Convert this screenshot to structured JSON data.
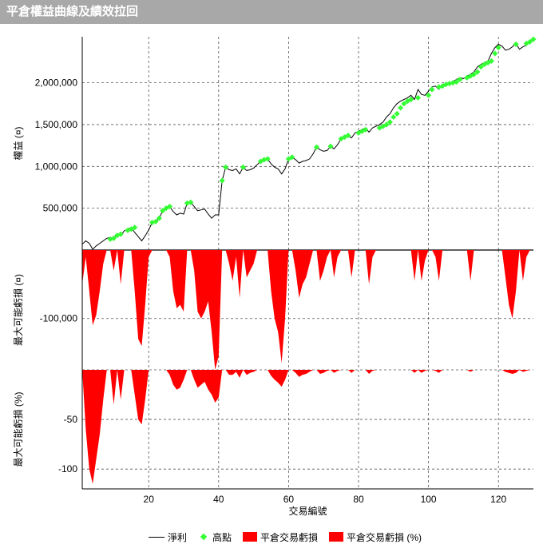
{
  "window": {
    "title": "平倉權益曲線及績效拉回"
  },
  "colors": {
    "line": "#000000",
    "marker": "#33ff33",
    "fill": "#ff0000",
    "grid": "#555555"
  },
  "chart_data": {
    "type": "line",
    "xlabel": "交易編號",
    "xlim": [
      1,
      130
    ],
    "xticks": [
      20,
      40,
      60,
      80,
      100,
      120
    ],
    "legend_position": "bottom",
    "legend": [
      "淨利",
      "高點",
      "平倉交易虧損",
      "平倉交易虧損 (%)"
    ],
    "panels": [
      {
        "name": "equity",
        "ylabel": "權益 (¤)",
        "ylim": [
          0,
          2550000
        ],
        "yticks": [
          500000,
          1000000,
          1500000,
          2000000
        ],
        "ytick_labels": [
          "500,000",
          "1,000,000",
          "1,500,000",
          "2,000,000"
        ],
        "series": [
          {
            "name": "淨利",
            "x": [
              1,
              2,
              3,
              4,
              5,
              6,
              7,
              8,
              9,
              10,
              11,
              12,
              13,
              14,
              15,
              16,
              17,
              18,
              19,
              20,
              21,
              22,
              23,
              24,
              25,
              26,
              27,
              28,
              29,
              30,
              31,
              32,
              33,
              34,
              35,
              36,
              37,
              38,
              39,
              40,
              41,
              42,
              43,
              44,
              45,
              46,
              47,
              48,
              49,
              50,
              51,
              52,
              53,
              54,
              55,
              56,
              57,
              58,
              59,
              60,
              61,
              62,
              63,
              64,
              65,
              66,
              67,
              68,
              69,
              70,
              71,
              72,
              73,
              74,
              75,
              76,
              77,
              78,
              79,
              80,
              81,
              82,
              83,
              84,
              85,
              86,
              87,
              88,
              89,
              90,
              91,
              92,
              93,
              94,
              95,
              96,
              97,
              98,
              99,
              100,
              101,
              102,
              103,
              104,
              105,
              106,
              107,
              108,
              109,
              110,
              111,
              112,
              113,
              114,
              115,
              116,
              117,
              118,
              119,
              120,
              121,
              122,
              123,
              124,
              125,
              126,
              127,
              128,
              129,
              130
            ],
            "y": [
              70000,
              110000,
              80000,
              10000,
              50000,
              80000,
              110000,
              140000,
              150000,
              140000,
              190000,
              170000,
              230000,
              250000,
              270000,
              210000,
              160000,
              110000,
              170000,
              240000,
              330000,
              340000,
              380000,
              470000,
              500000,
              520000,
              460000,
              420000,
              440000,
              430000,
              560000,
              570000,
              520000,
              470000,
              480000,
              490000,
              430000,
              380000,
              420000,
              420000,
              830000,
              990000,
              960000,
              950000,
              970000,
              910000,
              990000,
              950000,
              960000,
              980000,
              1020000,
              1060000,
              1080000,
              1090000,
              1030000,
              990000,
              970000,
              910000,
              970000,
              1090000,
              1110000,
              1080000,
              1040000,
              1060000,
              1070000,
              1090000,
              1150000,
              1230000,
              1200000,
              1180000,
              1190000,
              1240000,
              1210000,
              1260000,
              1330000,
              1350000,
              1370000,
              1340000,
              1400000,
              1420000,
              1440000,
              1460000,
              1410000,
              1460000,
              1480000,
              1500000,
              1530000,
              1590000,
              1630000,
              1700000,
              1750000,
              1780000,
              1800000,
              1820000,
              1850000,
              1800000,
              1920000,
              1860000,
              1850000,
              1900000,
              1950000,
              1960000,
              1920000,
              1980000,
              1990000,
              2000000,
              2010000,
              2040000,
              2060000,
              2050000,
              2080000,
              2100000,
              2130000,
              2190000,
              2220000,
              2240000,
              2260000,
              2350000,
              2420000,
              2460000,
              2440000,
              2390000,
              2400000,
              2430000,
              2470000,
              2400000,
              2430000,
              2450000,
              2490000,
              2520000
            ]
          },
          {
            "name": "高點",
            "x": [
              9,
              10,
              11,
              12,
              14,
              15,
              16,
              21,
              22,
              23,
              24,
              25,
              26,
              31,
              32,
              41,
              42,
              47,
              52,
              53,
              54,
              60,
              61,
              68,
              72,
              75,
              76,
              77,
              80,
              81,
              82,
              86,
              87,
              88,
              89,
              90,
              91,
              92,
              93,
              94,
              95,
              97,
              100,
              101,
              103,
              104,
              105,
              106,
              107,
              108,
              109,
              111,
              112,
              113,
              114,
              115,
              116,
              117,
              118,
              119,
              120,
              125,
              128,
              129,
              130
            ],
            "y": [
              130000,
              140000,
              175000,
              190000,
              235000,
              250000,
              270000,
              330000,
              340000,
              380000,
              470000,
              500000,
              520000,
              560000,
              570000,
              830000,
              990000,
              990000,
              1060000,
              1080000,
              1090000,
              1090000,
              1110000,
              1230000,
              1240000,
              1330000,
              1350000,
              1370000,
              1400000,
              1420000,
              1440000,
              1460000,
              1480000,
              1500000,
              1530000,
              1590000,
              1630000,
              1700000,
              1750000,
              1780000,
              1800000,
              1820000,
              1850000,
              1920000,
              1950000,
              1960000,
              1980000,
              1990000,
              2000000,
              2010000,
              2040000,
              2060000,
              2080000,
              2100000,
              2130000,
              2190000,
              2220000,
              2240000,
              2260000,
              2350000,
              2420000,
              2460000,
              2470000,
              2490000,
              2520000
            ]
          }
        ]
      },
      {
        "name": "drawdown",
        "ylabel": "最大可能虧損 (¤)",
        "ylim": [
          -175000,
          0
        ],
        "yticks": [
          -100000
        ],
        "ytick_labels": [
          "-100,000"
        ],
        "series": [
          {
            "name": "平倉交易虧損",
            "x": [
              1,
              2,
              3,
              4,
              5,
              6,
              7,
              8,
              9,
              10,
              11,
              12,
              13,
              14,
              15,
              16,
              17,
              18,
              19,
              20,
              21,
              22,
              23,
              24,
              25,
              26,
              27,
              28,
              29,
              30,
              31,
              32,
              33,
              34,
              35,
              36,
              37,
              38,
              39,
              40,
              41,
              42,
              43,
              44,
              45,
              46,
              47,
              48,
              49,
              50,
              51,
              52,
              53,
              54,
              55,
              56,
              57,
              58,
              59,
              60,
              61,
              62,
              63,
              64,
              65,
              66,
              67,
              68,
              69,
              70,
              71,
              72,
              73,
              74,
              75,
              76,
              77,
              78,
              79,
              80,
              81,
              82,
              83,
              84,
              85,
              86,
              87,
              88,
              89,
              90,
              91,
              92,
              93,
              94,
              95,
              96,
              97,
              98,
              99,
              100,
              101,
              102,
              103,
              104,
              105,
              106,
              107,
              108,
              109,
              110,
              111,
              112,
              113,
              114,
              115,
              116,
              117,
              118,
              119,
              120,
              121,
              122,
              123,
              124,
              125,
              126,
              127,
              128,
              129,
              130
            ],
            "y": [
              -50000,
              -10000,
              -60000,
              -110000,
              -95000,
              -60000,
              -20000,
              0,
              0,
              -30000,
              0,
              -50000,
              0,
              0,
              0,
              -60000,
              -130000,
              -140000,
              -80000,
              -10000,
              0,
              0,
              0,
              0,
              0,
              -10000,
              -60000,
              -85000,
              -80000,
              -90000,
              0,
              0,
              -30000,
              -90000,
              -100000,
              -90000,
              -75000,
              -120000,
              -175000,
              -155000,
              0,
              0,
              -20000,
              -45000,
              -10000,
              -70000,
              0,
              -40000,
              -30000,
              -20000,
              0,
              0,
              0,
              0,
              -60000,
              -100000,
              -120000,
              -165000,
              -100000,
              0,
              0,
              -30000,
              -70000,
              -50000,
              -40000,
              -20000,
              0,
              0,
              -45000,
              -30000,
              -10000,
              0,
              -40000,
              -10000,
              0,
              0,
              0,
              -40000,
              0,
              0,
              0,
              0,
              -50000,
              -10000,
              0,
              0,
              0,
              0,
              0,
              0,
              0,
              0,
              0,
              0,
              0,
              -45000,
              0,
              -45000,
              -15000,
              0,
              0,
              -10000,
              -45000,
              0,
              0,
              0,
              0,
              0,
              0,
              0,
              0,
              -45000,
              0,
              0,
              0,
              0,
              0,
              0,
              0,
              0,
              0,
              -40000,
              -80000,
              -100000,
              -60000,
              0,
              -45000,
              -10000,
              0,
              0
            ]
          }
        ]
      },
      {
        "name": "drawdown_pct",
        "ylabel": "最大可能虧損 (%)",
        "ylim": [
          -120,
          0
        ],
        "yticks": [
          -50,
          -100
        ],
        "ytick_labels": [
          "-50",
          "-100"
        ],
        "series": [
          {
            "name": "平倉交易虧損 (%)",
            "x": [
              1,
              2,
              3,
              4,
              5,
              6,
              7,
              8,
              9,
              10,
              11,
              12,
              13,
              14,
              15,
              16,
              17,
              18,
              19,
              20,
              21,
              22,
              23,
              24,
              25,
              26,
              27,
              28,
              29,
              30,
              31,
              32,
              33,
              34,
              35,
              36,
              37,
              38,
              39,
              40,
              41,
              42,
              43,
              44,
              45,
              46,
              47,
              48,
              49,
              50,
              51,
              52,
              53,
              54,
              55,
              56,
              57,
              58,
              59,
              60,
              61,
              62,
              63,
              64,
              65,
              66,
              67,
              68,
              69,
              70,
              71,
              72,
              73,
              74,
              75,
              76,
              77,
              78,
              79,
              80,
              81,
              82,
              83,
              84,
              85,
              86,
              87,
              88,
              89,
              90,
              91,
              92,
              93,
              94,
              95,
              96,
              97,
              98,
              99,
              100,
              101,
              102,
              103,
              104,
              105,
              106,
              107,
              108,
              109,
              110,
              111,
              112,
              113,
              114,
              115,
              116,
              117,
              118,
              119,
              120,
              121,
              122,
              123,
              124,
              125,
              126,
              127,
              128,
              129,
              130
            ],
            "y": [
              0,
              -60,
              -100,
              -115,
              -90,
              -65,
              -30,
              0,
              0,
              -35,
              0,
              -30,
              0,
              0,
              0,
              -25,
              -50,
              -55,
              -30,
              0,
              0,
              0,
              0,
              0,
              0,
              -5,
              -15,
              -20,
              -18,
              -10,
              0,
              0,
              -10,
              -18,
              -15,
              -12,
              -20,
              -25,
              -33,
              -28,
              0,
              0,
              -5,
              -5,
              -2,
              -8,
              0,
              -5,
              -3,
              -2,
              0,
              0,
              0,
              0,
              -6,
              -10,
              -13,
              -17,
              -10,
              0,
              0,
              -3,
              -7,
              -5,
              -4,
              -2,
              0,
              0,
              -4,
              -3,
              -1,
              0,
              -3,
              -1,
              0,
              0,
              0,
              -3,
              0,
              0,
              0,
              0,
              -4,
              -1,
              0,
              0,
              0,
              0,
              0,
              0,
              0,
              0,
              0,
              0,
              0,
              -3,
              0,
              -3,
              -1,
              0,
              0,
              -1,
              -3,
              0,
              0,
              0,
              0,
              0,
              0,
              0,
              0,
              -2,
              0,
              0,
              0,
              0,
              0,
              0,
              0,
              0,
              0,
              -2,
              -3,
              -4,
              -3,
              0,
              -2,
              -1,
              0,
              0
            ]
          }
        ]
      }
    ]
  }
}
